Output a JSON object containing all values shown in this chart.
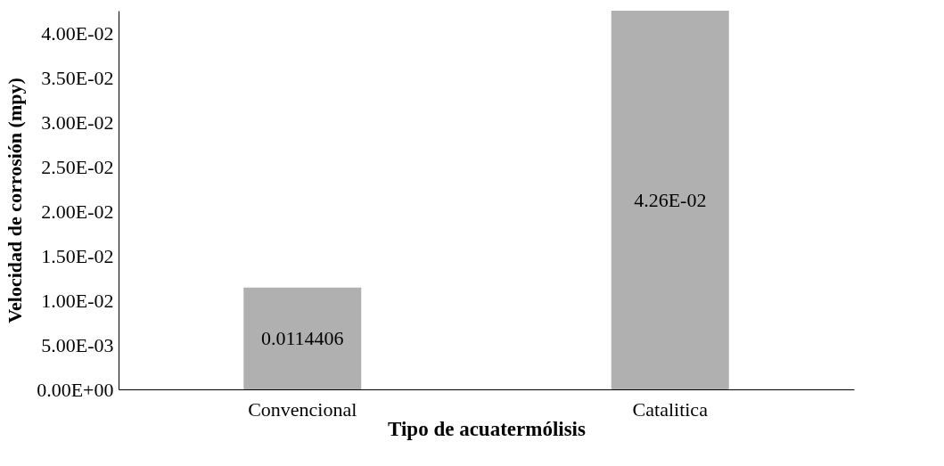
{
  "chart_data": {
    "type": "bar",
    "xlabel": "Tipo de acuatermólisis",
    "ylabel": "Velocidad de corrosión (mpy)",
    "categories": [
      "Convencional",
      "Catalitica"
    ],
    "values": [
      0.0114406,
      0.0426
    ],
    "value_labels": [
      "0.0114406",
      "4.26E-02"
    ],
    "color": "#b0b0b0",
    "ylim": [
      0,
      0.0426
    ],
    "yticks": [
      {
        "value": 0,
        "label": "0.00E+00"
      },
      {
        "value": 0.005,
        "label": "5.00E-03"
      },
      {
        "value": 0.01,
        "label": "1.00E-02"
      },
      {
        "value": 0.015,
        "label": "1.50E-02"
      },
      {
        "value": 0.02,
        "label": "2.00E-02"
      },
      {
        "value": 0.025,
        "label": "2.50E-02"
      },
      {
        "value": 0.03,
        "label": "3.00E-02"
      },
      {
        "value": 0.035,
        "label": "3.50E-02"
      },
      {
        "value": 0.04,
        "label": "4.00E-02"
      }
    ],
    "grid": false
  }
}
